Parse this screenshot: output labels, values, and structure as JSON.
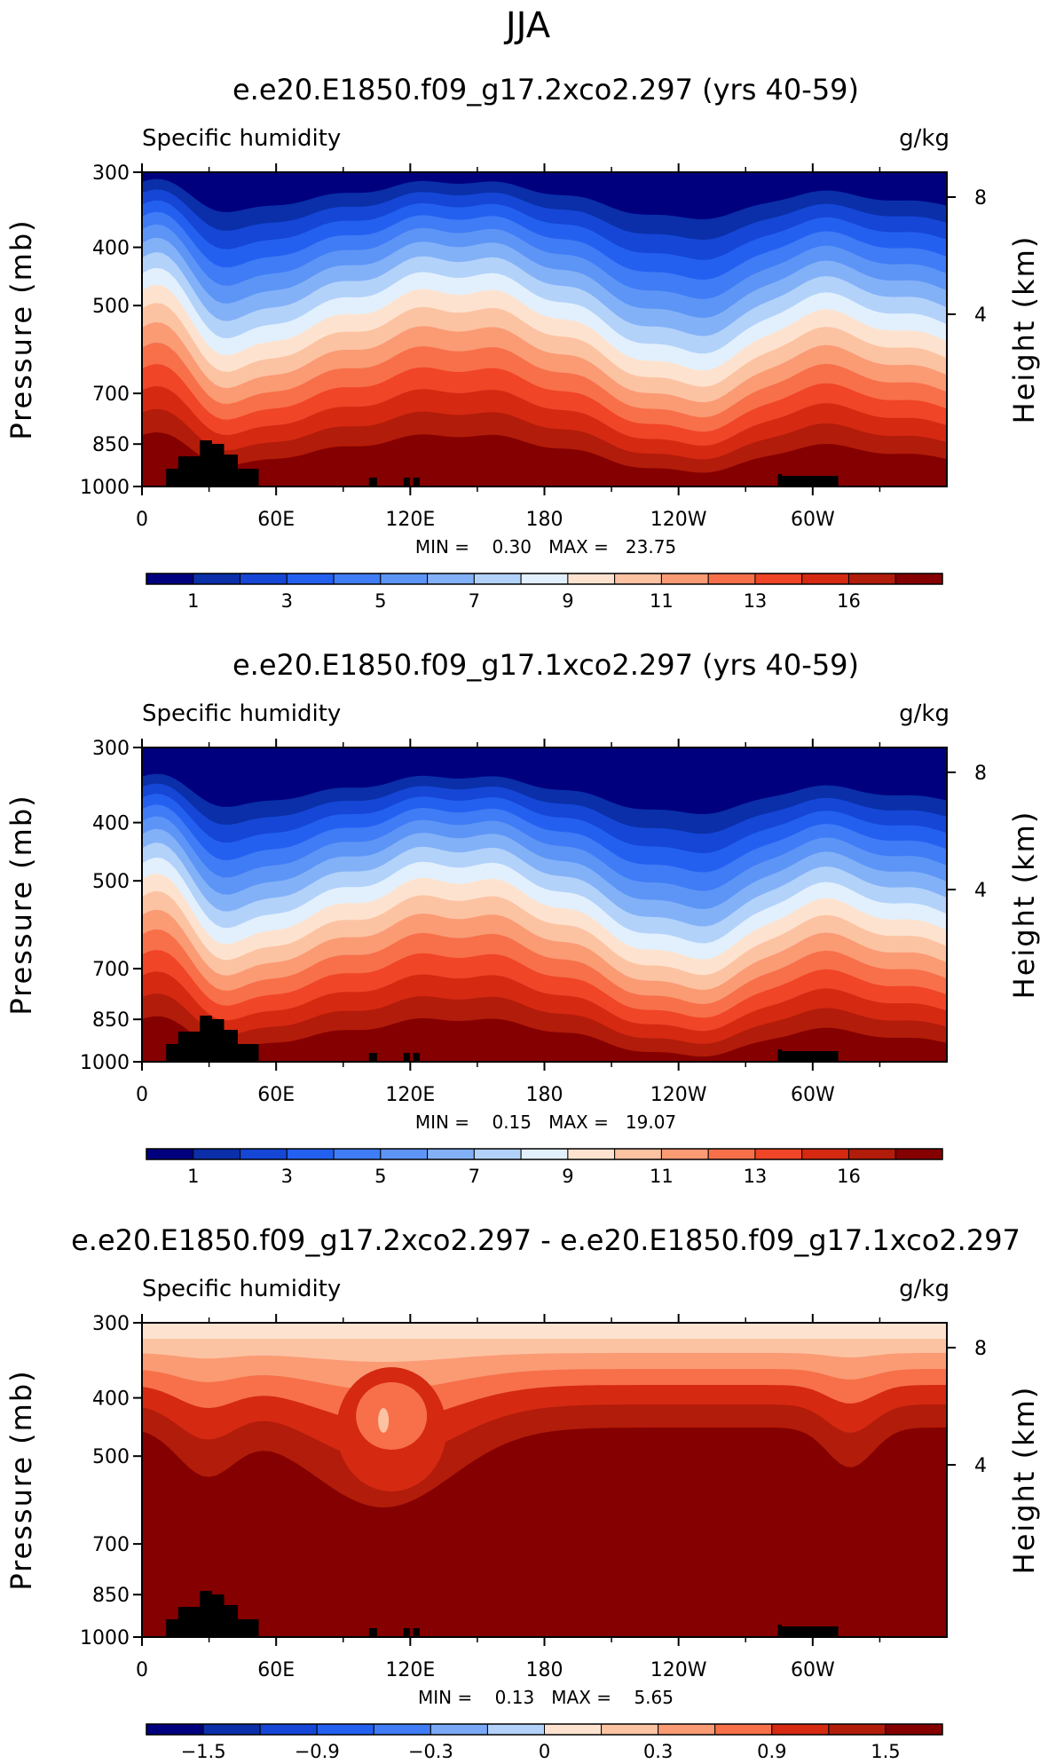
{
  "figure_title": "JJA",
  "chart_data": [
    {
      "type": "heatmap",
      "title": "e.e20.E1850.f09_g17.2xco2.297 (yrs 40-59)",
      "left_string": "Specific humidity",
      "right_string": "g/kg",
      "ylabel": "Pressure (mb)",
      "y2label": "Height (km)",
      "xticks": [
        "0",
        "60E",
        "120E",
        "180",
        "120W",
        "60W"
      ],
      "yticks": [
        "300",
        "400",
        "500",
        "700",
        "850",
        "1000"
      ],
      "y2ticks": [
        "8",
        "4"
      ],
      "stats": "MIN =    0.30   MAX =   23.75",
      "colorbar": {
        "levels": [
          1,
          2,
          3,
          4,
          5,
          6,
          7,
          8,
          9,
          10,
          11,
          12,
          13,
          14,
          16
        ],
        "labels": [
          "1",
          "3",
          "5",
          "7",
          "9",
          "11",
          "13",
          "16"
        ],
        "palette": [
          "#00007f",
          "#0a2fa8",
          "#1546d6",
          "#2460f0",
          "#3f7cf5",
          "#5d95f6",
          "#83b1f7",
          "#b3d2fa",
          "#e2f0fd",
          "#fde3cf",
          "#fcc3a3",
          "#fa9b74",
          "#f7704a",
          "#f04526",
          "#d52912",
          "#b21c0a",
          "#850000"
        ]
      },
      "field_style": "moist",
      "topography": "full",
      "min": 0.3,
      "max": 23.75
    },
    {
      "type": "heatmap",
      "title": "e.e20.E1850.f09_g17.1xco2.297 (yrs 40-59)",
      "left_string": "Specific humidity",
      "right_string": "g/kg",
      "ylabel": "Pressure (mb)",
      "y2label": "Height (km)",
      "xticks": [
        "0",
        "60E",
        "120E",
        "180",
        "120W",
        "60W"
      ],
      "yticks": [
        "300",
        "400",
        "500",
        "700",
        "850",
        "1000"
      ],
      "y2ticks": [
        "8",
        "4"
      ],
      "stats": "MIN =    0.15   MAX =   19.07",
      "colorbar": {
        "levels": [
          1,
          2,
          3,
          4,
          5,
          6,
          7,
          8,
          9,
          10,
          11,
          12,
          13,
          14,
          16
        ],
        "labels": [
          "1",
          "3",
          "5",
          "7",
          "9",
          "11",
          "13",
          "16"
        ],
        "palette": [
          "#00007f",
          "#0a2fa8",
          "#1546d6",
          "#2460f0",
          "#3f7cf5",
          "#5d95f6",
          "#83b1f7",
          "#b3d2fa",
          "#e2f0fd",
          "#fde3cf",
          "#fcc3a3",
          "#fa9b74",
          "#f7704a",
          "#f04526",
          "#d52912",
          "#b21c0a",
          "#850000"
        ]
      },
      "field_style": "dry",
      "topography": "full",
      "min": 0.15,
      "max": 19.07
    },
    {
      "type": "heatmap",
      "title": "e.e20.E1850.f09_g17.2xco2.297 - e.e20.E1850.f09_g17.1xco2.297",
      "left_string": "Specific humidity",
      "right_string": "g/kg",
      "ylabel": "Pressure (mb)",
      "y2label": "Height (km)",
      "xticks": [
        "0",
        "60E",
        "120E",
        "180",
        "120W",
        "60W"
      ],
      "yticks": [
        "300",
        "400",
        "500",
        "700",
        "850",
        "1000"
      ],
      "y2ticks": [
        "8",
        "4"
      ],
      "stats": "MIN =    0.13   MAX =    5.65",
      "colorbar": {
        "levels": [
          -1.8,
          -1.5,
          -1.2,
          -0.9,
          -0.6,
          -0.3,
          0,
          0.3,
          0.6,
          0.9,
          1.2,
          1.5,
          1.8
        ],
        "labels": [
          "−1.5",
          "−0.9",
          "−0.3",
          "0",
          "0.3",
          "0.9",
          "1.5"
        ],
        "palette": [
          "#00007f",
          "#0a2fa8",
          "#1546d6",
          "#2460f0",
          "#3f7cf5",
          "#7aa8f6",
          "#b3d2fa",
          "#fde3cf",
          "#fcc3a3",
          "#fa9b74",
          "#f7704a",
          "#d52912",
          "#b21c0a",
          "#850000"
        ]
      },
      "field_style": "diff",
      "topography": "full",
      "min": 0.13,
      "max": 5.65
    }
  ]
}
